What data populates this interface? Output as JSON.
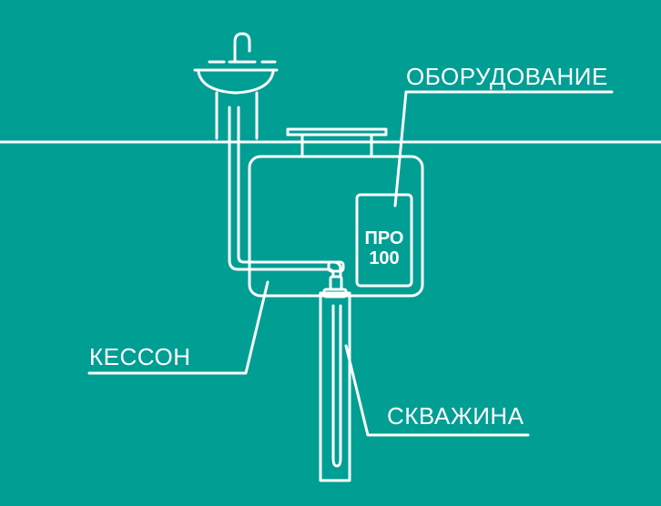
{
  "labels": {
    "equipment": "ОБОРУДОВАНИЕ",
    "caisson": "КЕССОН",
    "well": "СКВАЖИНА"
  },
  "logo": {
    "line1": "ПРО",
    "line2": "100"
  },
  "colors": {
    "background": "#009E93",
    "stroke": "#FFFFFF"
  }
}
